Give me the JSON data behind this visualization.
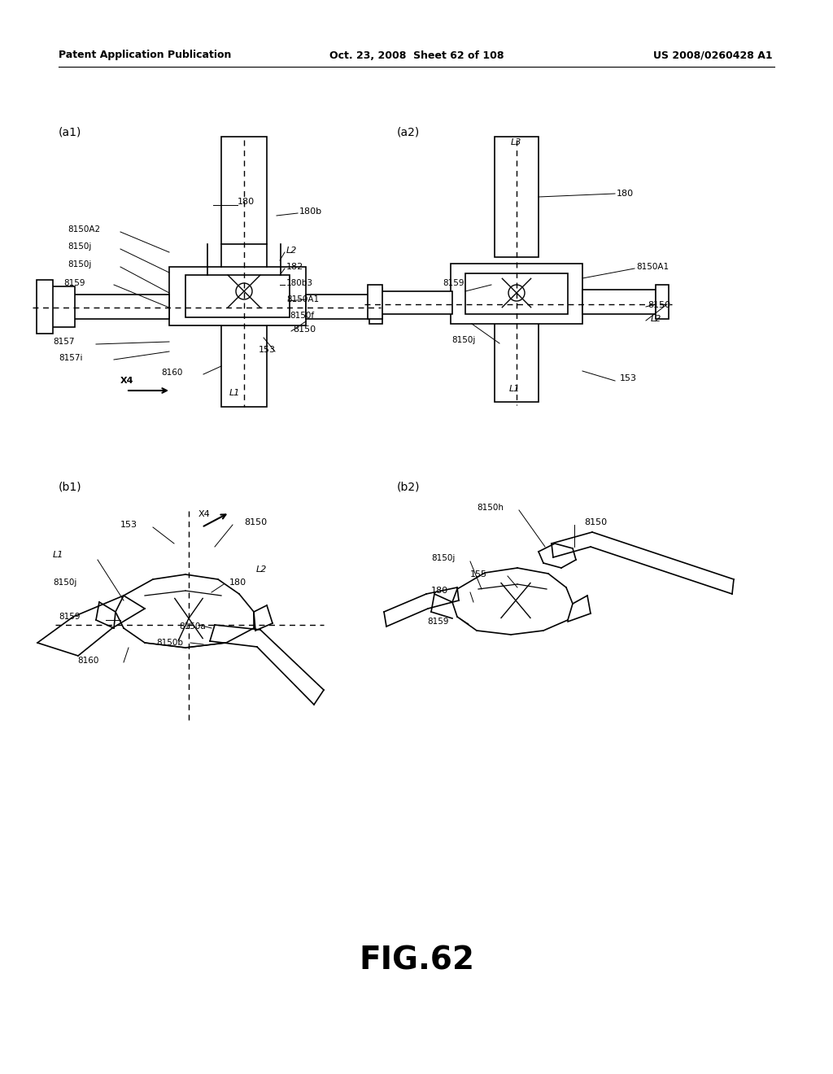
{
  "bg_color": "#ffffff",
  "header_left": "Patent Application Publication",
  "header_mid": "Oct. 23, 2008  Sheet 62 of 108",
  "header_right": "US 2008/0260428 A1",
  "figure_label": "FIG.62"
}
